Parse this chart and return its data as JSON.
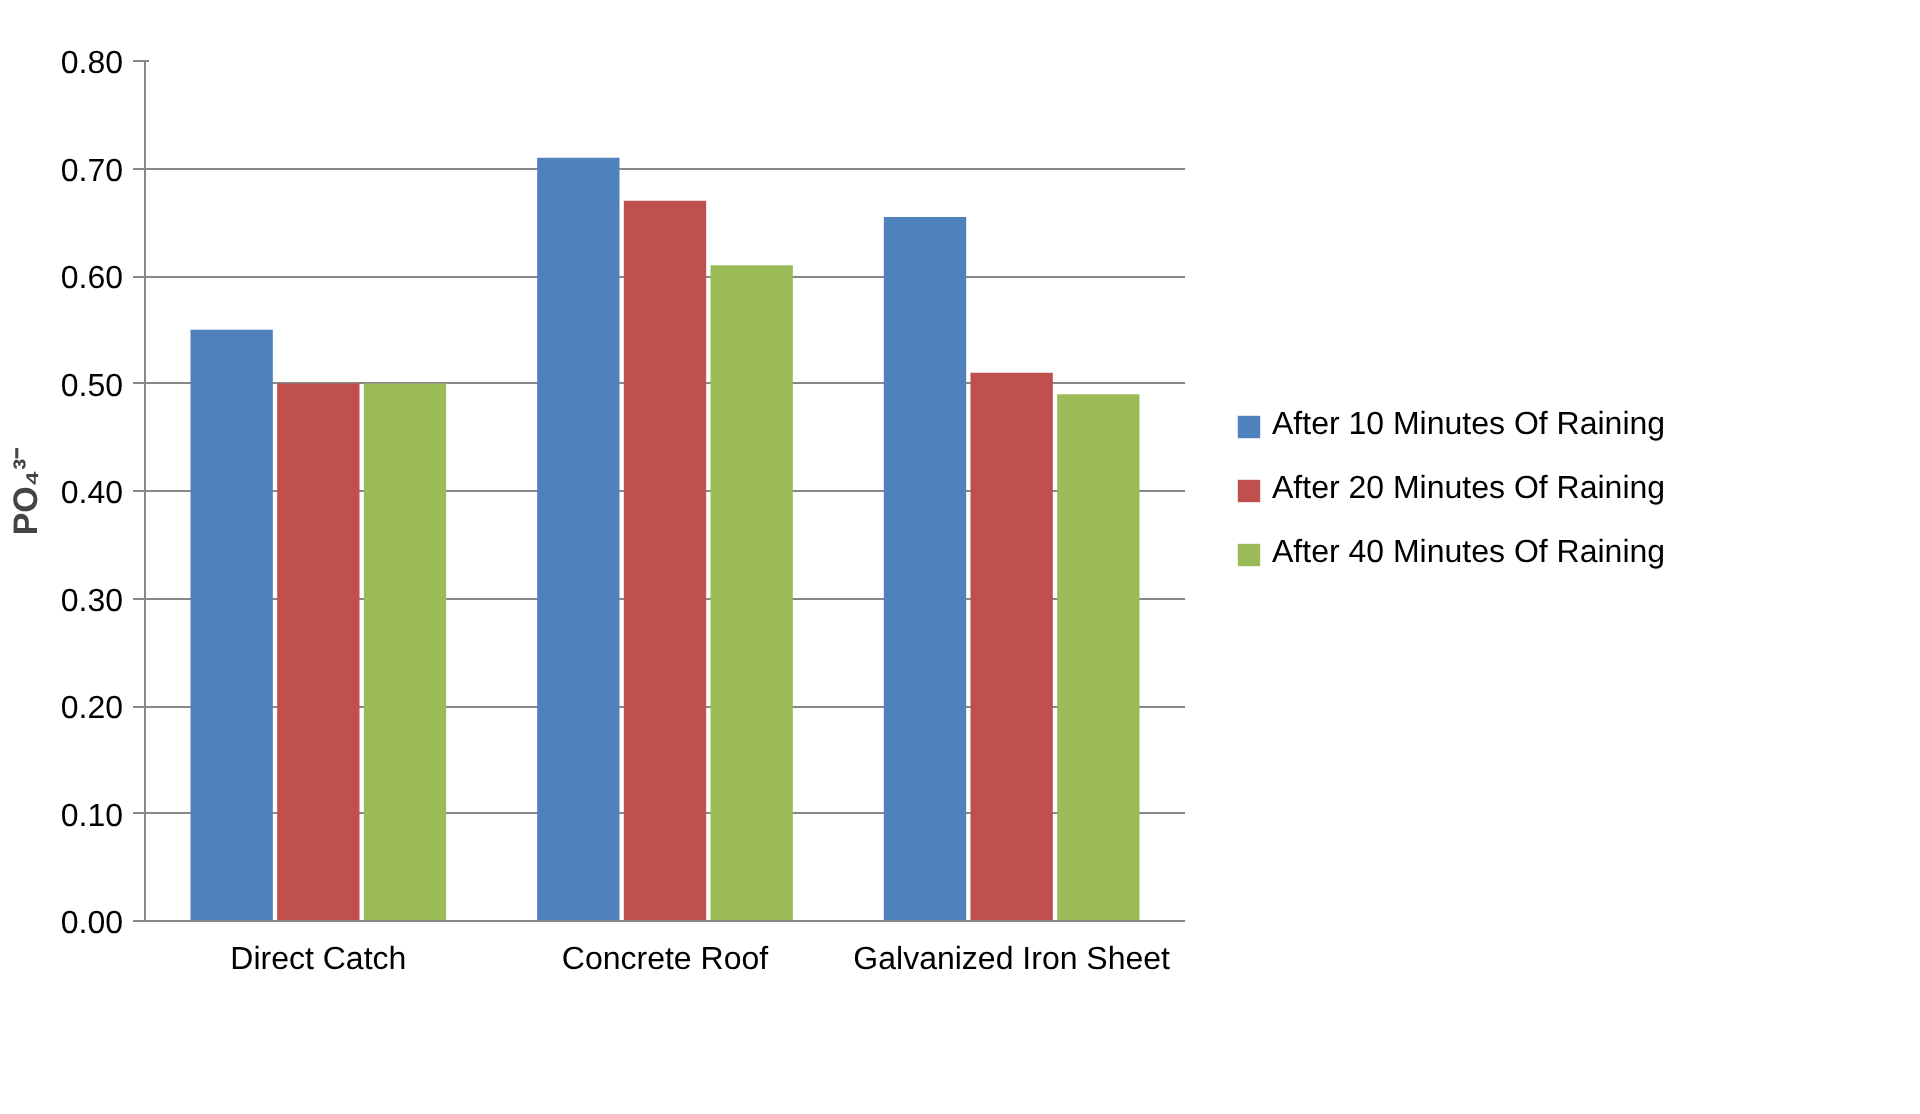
{
  "chart_data": {
    "type": "bar",
    "ylabel": "PO₄³⁻",
    "categories": [
      "Direct Catch",
      "Concrete Roof",
      "Galvanized Iron Sheet"
    ],
    "series": [
      {
        "name": "After 10 Minutes Of Raining",
        "color": "#4f81bd",
        "values": [
          0.55,
          0.71,
          0.655
        ]
      },
      {
        "name": "After 20 Minutes Of Raining",
        "color": "#c0504d",
        "values": [
          0.5,
          0.67,
          0.51
        ]
      },
      {
        "name": "After 40 Minutes Of Raining",
        "color": "#9bbb59",
        "values": [
          0.5,
          0.61,
          0.49
        ]
      }
    ],
    "ylim": [
      0,
      0.8
    ],
    "yticks": [
      {
        "value": 0,
        "label": "0.00"
      },
      {
        "value": 0.1,
        "label": "0.10"
      },
      {
        "value": 0.2,
        "label": "0.20"
      },
      {
        "value": 0.3,
        "label": "0.30"
      },
      {
        "value": 0.4,
        "label": "0.40"
      },
      {
        "value": 0.5,
        "label": "0.50"
      },
      {
        "value": 0.6,
        "label": "0.60"
      },
      {
        "value": 0.7,
        "label": "0.70"
      },
      {
        "value": 0.8,
        "label": "0.80"
      }
    ],
    "grid": "y",
    "legend": "right"
  }
}
